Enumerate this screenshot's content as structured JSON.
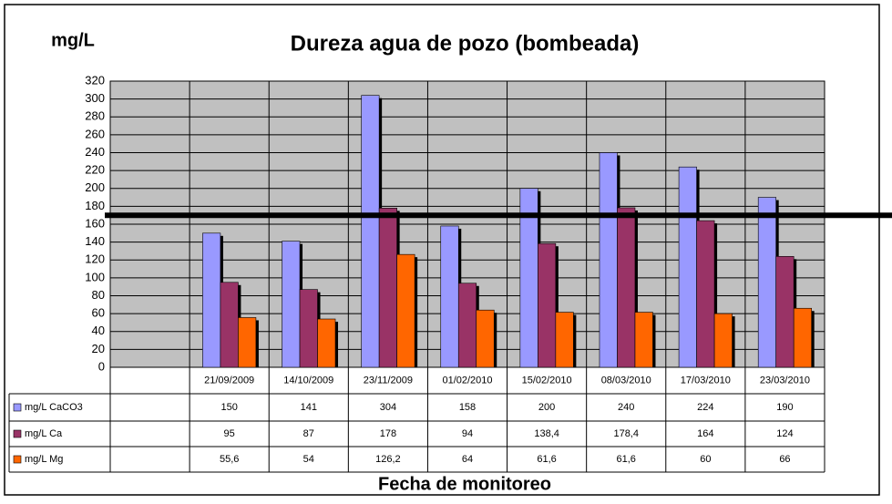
{
  "chart_data": {
    "type": "bar",
    "title": "Dureza agua de pozo (bombeada)",
    "y_label": "mg/L",
    "x_label": "Fecha de monitoreo",
    "categories": [
      null,
      "21/09/2009",
      "14/10/2009",
      "23/11/2009",
      "01/02/2010",
      "15/02/2010",
      "08/03/2010",
      "17/03/2010",
      "23/03/2010"
    ],
    "series": [
      {
        "name": "mg/L CaCO3",
        "color": "#9999ff",
        "values": [
          null,
          150,
          141,
          304,
          158,
          200,
          240,
          224,
          190
        ]
      },
      {
        "name": "mg/L Ca",
        "color": "#993366",
        "values": [
          null,
          95,
          87,
          178,
          94,
          138.4,
          178.4,
          164,
          124
        ],
        "value_labels": [
          null,
          "95",
          "87",
          "178",
          "94",
          "138,4",
          "178,4",
          "164",
          "124"
        ]
      },
      {
        "name": "mg/L Mg",
        "color": "#ff6600",
        "values": [
          null,
          55.6,
          54,
          126.2,
          64,
          61.6,
          61.6,
          60,
          66
        ],
        "value_labels": [
          null,
          "55,6",
          "54",
          "126,2",
          "64",
          "61,6",
          "61,6",
          "60",
          "66"
        ]
      }
    ],
    "ylim": [
      0,
      320
    ],
    "yticks": [
      0,
      20,
      40,
      60,
      80,
      100,
      120,
      140,
      160,
      180,
      200,
      220,
      240,
      260,
      280,
      300,
      320
    ],
    "grid": true,
    "reference_line": 170
  }
}
